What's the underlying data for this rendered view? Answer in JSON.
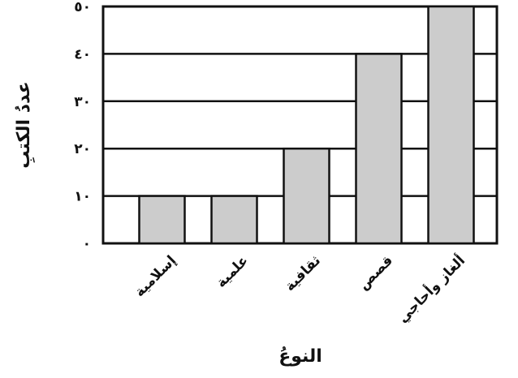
{
  "chart_data": {
    "type": "bar",
    "categories": [
      "إسلامية",
      "علمية",
      "ثقافية",
      "قصص",
      "ألغاز وأحاجي"
    ],
    "values": [
      10,
      10,
      20,
      40,
      50
    ],
    "xlabel": "النوعُ",
    "ylabel": "عددُ الكتبِ",
    "yticks": [
      "٠",
      "١٠",
      "٢٠",
      "٣٠",
      "٤٠",
      "٥٠"
    ],
    "ylim": [
      0,
      50
    ],
    "grid": true,
    "colors": {
      "bar": "#cccccc",
      "stroke": "#111111",
      "background": "#ffffff"
    }
  }
}
